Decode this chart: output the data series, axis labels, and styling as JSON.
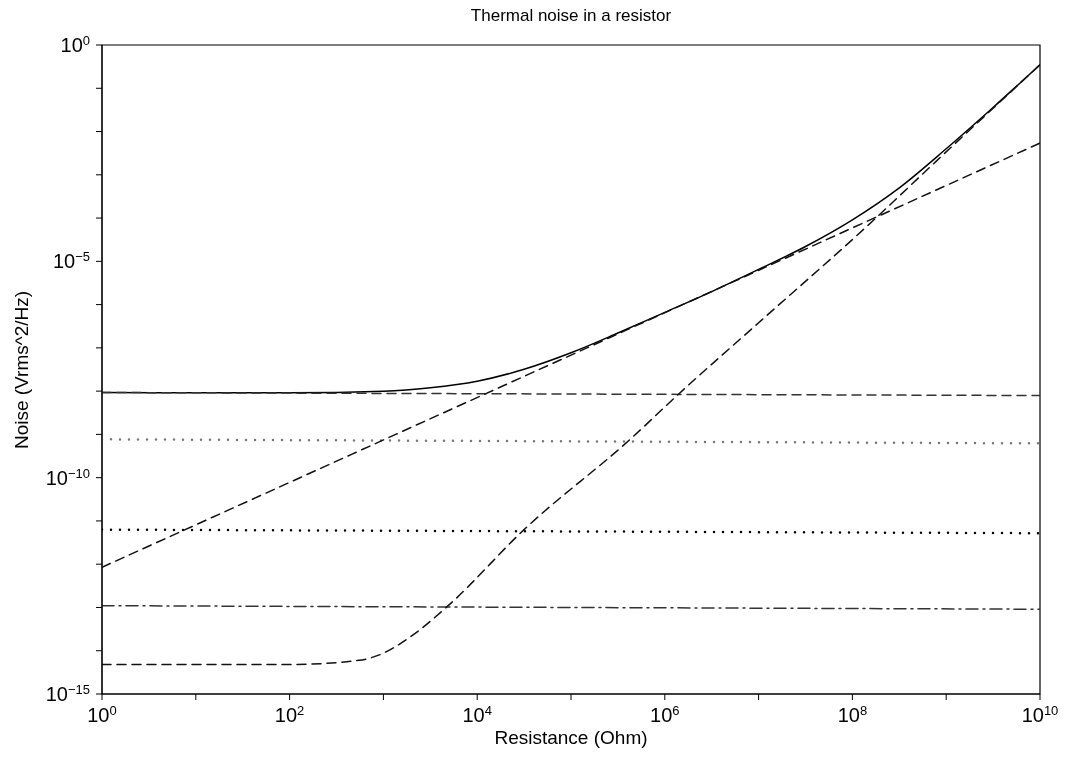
{
  "chart_data": {
    "type": "line",
    "title": "Thermal noise in a resistor",
    "xlabel": "Resistance (Ohm)",
    "ylabel": "Noise (Vrms^2/Hz)",
    "log": "xy",
    "grid": false,
    "marker": "none",
    "xlim": [
      1,
      10000000000
    ],
    "ylim": [
      1e-15,
      1
    ],
    "xticks": [
      {
        "value": 1,
        "label": "10$^{0}$"
      },
      {
        "value": 10,
        "label": null
      },
      {
        "value": 100,
        "label": "10$^{2}$"
      },
      {
        "value": 1000,
        "label": null
      },
      {
        "value": 10000,
        "label": "10$^{4}$"
      },
      {
        "value": 100000,
        "label": null
      },
      {
        "value": 1000000,
        "label": "10$^{6}$"
      },
      {
        "value": 10000000,
        "label": null
      },
      {
        "value": 100000000,
        "label": "10$^{8}$"
      },
      {
        "value": 1000000000,
        "label": null
      },
      {
        "value": 10000000000,
        "label": "10$^{10}$"
      }
    ],
    "yticks": [
      {
        "value": 1e-15,
        "label": "10$^{−15}$"
      },
      {
        "value": 1e-14,
        "label": null
      },
      {
        "value": 1e-13,
        "label": null
      },
      {
        "value": 1e-12,
        "label": null
      },
      {
        "value": 1e-11,
        "label": null
      },
      {
        "value": 1e-10,
        "label": "10$^{−10}$"
      },
      {
        "value": 1e-09,
        "label": null
      },
      {
        "value": 1e-08,
        "label": null
      },
      {
        "value": 1e-07,
        "label": null
      },
      {
        "value": 1e-06,
        "label": null
      },
      {
        "value": 1e-05,
        "label": "10$^{−5}$"
      },
      {
        "value": 0.0001,
        "label": null
      },
      {
        "value": 0.001,
        "label": null
      },
      {
        "value": 0.01,
        "label": null
      },
      {
        "value": 0.1,
        "label": null
      },
      {
        "value": 1,
        "label": "10$^{0}$"
      }
    ],
    "series": [
      {
        "color": "#000000",
        "line_style": "solid",
        "x": [
          1,
          10,
          100,
          1000,
          3162,
          10000,
          31623,
          100000,
          316228,
          1000000,
          3162278,
          10000000,
          31622777,
          100000000,
          316227766,
          1000000000,
          3162277660,
          10000000000
        ],
        "values": [
          9.3e-09,
          9.2e-09,
          9.2e-09,
          1e-08,
          1.2e-08,
          1.7e-08,
          3.2e-08,
          7.7e-08,
          2.2e-07,
          6.6e-07,
          2e-06,
          6.5e-06,
          2.2e-05,
          9.1e-05,
          0.0005,
          0.004,
          0.036,
          0.35
        ]
      },
      {
        "color": "#333333",
        "line_style": "dashed",
        "x": [
          1,
          10000000000
        ],
        "values": [
          9.3e-09,
          7.9e-09
        ]
      },
      {
        "color": "#777777",
        "line_style": "dotted",
        "x": [
          1,
          10000000000
        ],
        "values": [
          7.7e-10,
          6.2e-10
        ]
      },
      {
        "color": "#000000",
        "line_style": "dotted",
        "x": [
          1,
          10000000000
        ],
        "values": [
          6.3e-12,
          5.2e-12
        ]
      },
      {
        "color": "#333333",
        "line_style": "dashdot",
        "x": [
          1,
          10000000000
        ],
        "values": [
          1.1e-13,
          9.1e-14
        ]
      },
      {
        "color": "#111111",
        "line_style": "dashed",
        "x": [
          1,
          100000,
          10000000000
        ],
        "values": [
          8.5e-13,
          6.8e-08,
          0.0054
        ]
      },
      {
        "color": "#111111",
        "line_style": "dashed",
        "x": [
          1,
          100,
          550,
          890,
          2000,
          4900,
          31600,
          430000,
          1400000,
          10000000,
          140000000,
          790000000,
          10000000000
        ],
        "values": [
          4.8e-15,
          4.8e-15,
          6e-15,
          7.9e-15,
          2.2e-14,
          1.1e-13,
          6.3e-12,
          7.8e-10,
          8.5e-09,
          3.8e-07,
          6.2e-05,
          0.0021,
          0.35
        ]
      }
    ]
  }
}
